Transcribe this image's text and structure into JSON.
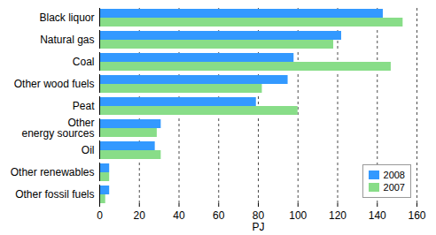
{
  "chart_data": {
    "type": "bar",
    "orientation": "horizontal",
    "categories": [
      "Black liquor",
      "Natural gas",
      "Coal",
      "Other wood fuels",
      "Peat",
      "Other\nenergy sources",
      "Oil",
      "Other renewables",
      "Other fossil fuels"
    ],
    "series": [
      {
        "name": "2008",
        "color": "#3399ff",
        "values": [
          143,
          122,
          98,
          95,
          79,
          31,
          28,
          5,
          5
        ]
      },
      {
        "name": "2007",
        "color": "#88dd88",
        "values": [
          153,
          118,
          147,
          82,
          100,
          29,
          31,
          5,
          3
        ]
      }
    ],
    "x_label": "PJ",
    "xlim": [
      0,
      160
    ],
    "xticks": [
      0,
      20,
      40,
      60,
      80,
      100,
      120,
      140,
      160
    ],
    "grid": true,
    "legend": "bottom-right"
  }
}
